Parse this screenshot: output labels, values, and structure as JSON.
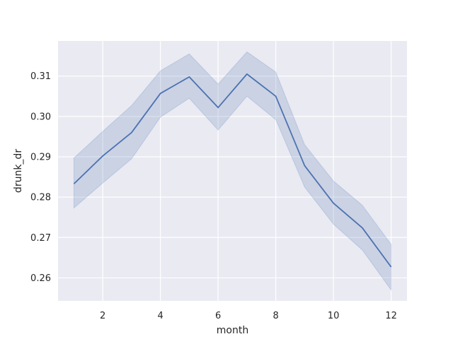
{
  "chart_data": {
    "type": "line",
    "xlabel": "month",
    "ylabel": "drunk_dr",
    "xlim": [
      0.45,
      12.55
    ],
    "ylim": [
      0.2543,
      0.3187
    ],
    "grid": true,
    "x_ticks": [
      2,
      4,
      6,
      8,
      10,
      12
    ],
    "x_tick_labels": [
      "2",
      "4",
      "6",
      "8",
      "10",
      "12"
    ],
    "y_ticks": [
      0.26,
      0.27,
      0.28,
      0.29,
      0.3,
      0.31
    ],
    "y_tick_labels": [
      "0.26",
      "0.27",
      "0.28",
      "0.29",
      "0.30",
      "0.31"
    ],
    "series": [
      {
        "x": [
          1,
          2,
          3,
          4,
          5,
          6,
          7,
          8,
          9,
          10,
          11,
          12
        ],
        "values": [
          0.2833,
          0.2902,
          0.296,
          0.3057,
          0.3098,
          0.3022,
          0.3105,
          0.305,
          0.2878,
          0.2785,
          0.2724,
          0.2627
        ],
        "ci_lower": [
          0.2773,
          0.2835,
          0.2895,
          0.2998,
          0.3045,
          0.2966,
          0.305,
          0.2992,
          0.2825,
          0.2733,
          0.2669,
          0.257
        ],
        "ci_upper": [
          0.2897,
          0.2963,
          0.3027,
          0.3113,
          0.3155,
          0.308,
          0.316,
          0.311,
          0.293,
          0.284,
          0.278,
          0.2683
        ]
      }
    ],
    "colors": {
      "line": "#4c72b0",
      "band": "#4c72b0",
      "plot_background": "#eaeaf2",
      "grid": "#ffffff"
    }
  }
}
